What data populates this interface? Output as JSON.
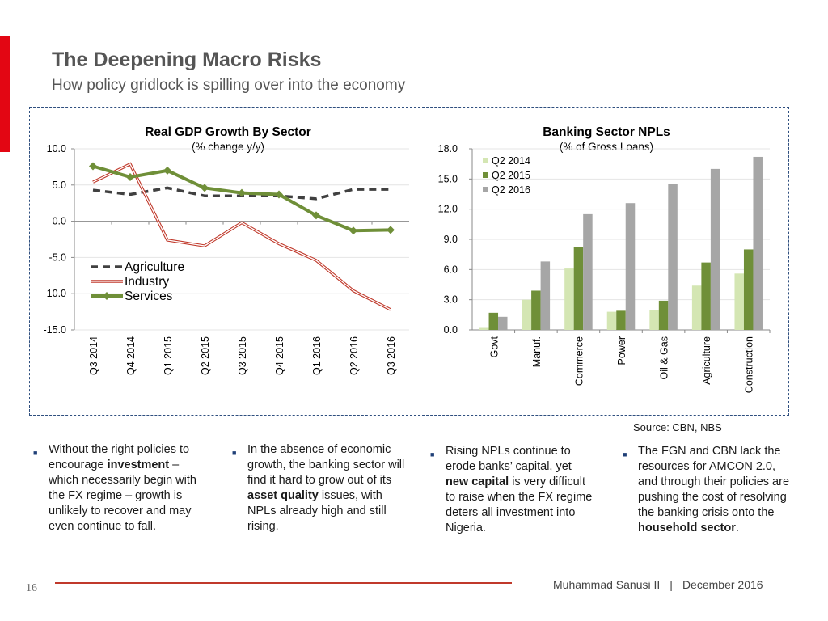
{
  "slide": {
    "title": "The Deepening Macro Risks",
    "subtitle": "How policy gridlock is spilling over into the economy",
    "source": "Source: CBN, NBS",
    "page_number": "16",
    "author": "Muhammad Sanusi II",
    "separator": "|",
    "date": "December 2016"
  },
  "colors": {
    "accent": "#e30613",
    "agriculture": "#404040",
    "industry": "#c0392b",
    "services": "#6f8f38",
    "q2_2014": "#d4e6b3",
    "q2_2015": "#6f8f38",
    "q2_2016": "#a6a6a6",
    "frame": "#2f4f7f"
  },
  "bullets": [
    {
      "parts": [
        {
          "text": "Without the right policies to encourage "
        },
        {
          "text": "investment",
          "bold": true
        },
        {
          "text": " – which necessarily begin with the FX regime – growth is unlikely to recover and may even continue to fall."
        }
      ]
    },
    {
      "parts": [
        {
          "text": "In the absence of economic growth, the banking sector will find it hard to grow out of its "
        },
        {
          "text": "asset quality",
          "bold": true
        },
        {
          "text": " issues, with NPLs already high and still rising."
        }
      ]
    },
    {
      "parts": [
        {
          "text": "Rising NPLs continue to erode banks’ capital, yet "
        },
        {
          "text": "new capital",
          "bold": true
        },
        {
          "text": " is very difficult to raise when the FX regime deters all investment into Nigeria."
        }
      ]
    },
    {
      "parts": [
        {
          "text": "The FGN and CBN lack the resources for AMCON 2.0, and through their policies are pushing the cost of resolving the banking crisis onto the "
        },
        {
          "text": "household sector",
          "bold": true
        },
        {
          "text": "."
        }
      ]
    }
  ],
  "chart_data": [
    {
      "type": "line",
      "title": "Real GDP Growth By Sector",
      "subtitle": "(% change y/y)",
      "categories": [
        "Q3 2014",
        "Q4 2014",
        "Q1 2015",
        "Q2 2015",
        "Q3 2015",
        "Q4 2015",
        "Q1 2016",
        "Q2 2016",
        "Q3 2016"
      ],
      "ylim": [
        -15,
        10
      ],
      "yticks": [
        "10.0",
        "5.0",
        "0.0",
        "-5.0",
        "-10.0",
        "-15.0"
      ],
      "ytick_values": [
        10,
        5,
        0,
        -5,
        -10,
        -15
      ],
      "legend_position": "bottom-left",
      "series": [
        {
          "name": "Agriculture",
          "style": "dashed",
          "values": [
            4.3,
            3.7,
            4.6,
            3.5,
            3.5,
            3.5,
            3.1,
            4.4,
            4.4
          ]
        },
        {
          "name": "Industry",
          "style": "double",
          "values": [
            5.4,
            7.9,
            -2.6,
            -3.4,
            -0.2,
            -3.1,
            -5.4,
            -9.6,
            -12.2
          ]
        },
        {
          "name": "Services",
          "style": "solid-diamond",
          "values": [
            7.6,
            6.1,
            7.0,
            4.6,
            3.9,
            3.7,
            0.8,
            -1.3,
            -1.2
          ]
        }
      ]
    },
    {
      "type": "bar",
      "title": "Banking Sector NPLs",
      "subtitle": "(% of Gross Loans)",
      "categories": [
        "Govt",
        "Manuf.",
        "Commerce",
        "Power",
        "Oil & Gas",
        "Agriculture",
        "Construction"
      ],
      "ylim": [
        0,
        18
      ],
      "yticks": [
        "18.0",
        "15.0",
        "12.0",
        "9.0",
        "6.0",
        "3.0",
        "0.0"
      ],
      "ytick_values": [
        18,
        15,
        12,
        9,
        6,
        3,
        0
      ],
      "legend_position": "top-left",
      "series": [
        {
          "name": "Q2 2014",
          "values": [
            0.2,
            3.0,
            6.1,
            1.8,
            2.0,
            4.4,
            5.6
          ]
        },
        {
          "name": "Q2 2015",
          "values": [
            1.7,
            3.9,
            8.2,
            1.9,
            2.9,
            6.7,
            8.0
          ]
        },
        {
          "name": "Q2 2016",
          "values": [
            1.3,
            6.8,
            11.5,
            12.6,
            14.5,
            16.0,
            17.2
          ]
        }
      ]
    }
  ]
}
